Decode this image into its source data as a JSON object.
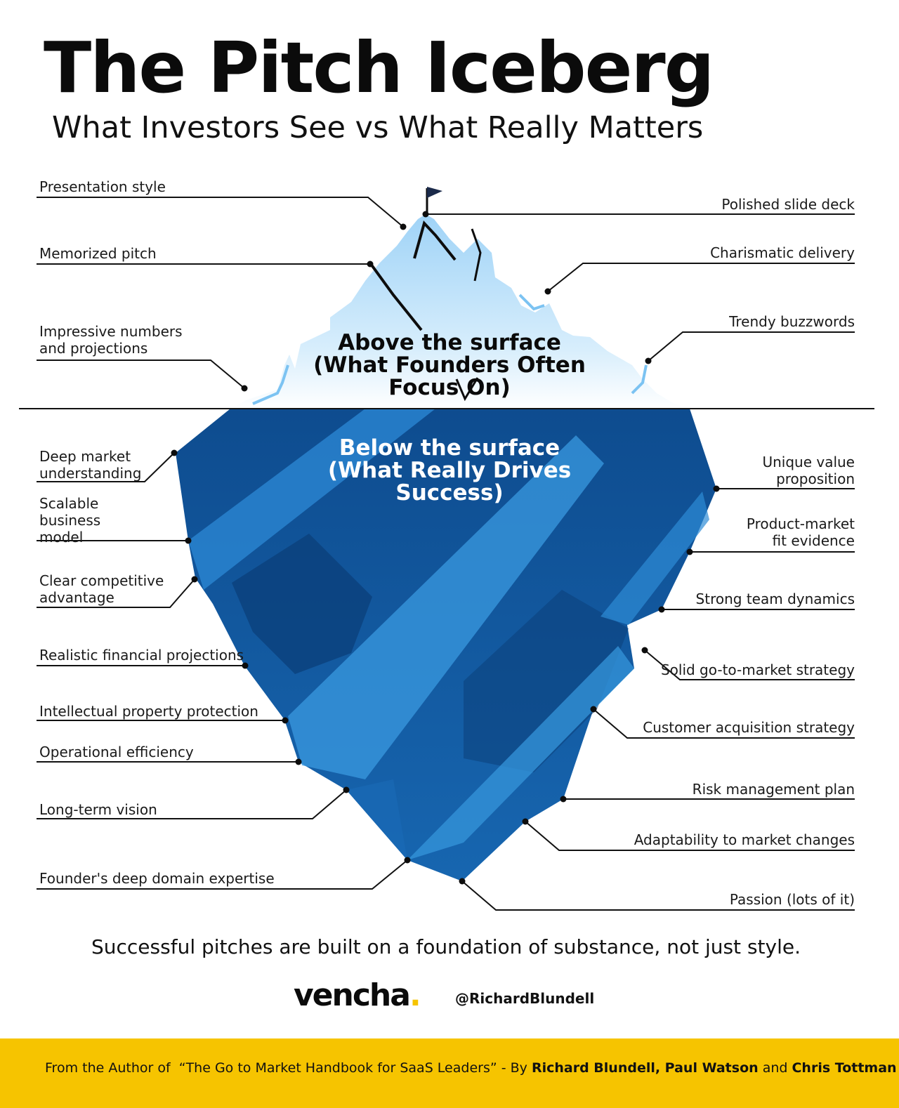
{
  "header": {
    "title": "The Pitch Iceberg",
    "subtitle": "What Investors See vs What Really Matters"
  },
  "zones": {
    "above": "Above the surface\n(What Founders Often\nFocus On)",
    "below": "Below the surface\n(What Really Drives\nSuccess)"
  },
  "labels_left_above": [
    "Presentation style",
    "Memorized pitch",
    "Impressive numbers\nand projections"
  ],
  "labels_right_above": [
    "Polished slide deck",
    "Charismatic delivery",
    "Trendy buzzwords"
  ],
  "labels_left_below": [
    "Deep market\nunderstanding",
    "Scalable\nbusiness\nmodel",
    "Clear competitive\nadvantage",
    "Realistic financial projections",
    "Intellectual property protection",
    "Operational efficiency",
    "Long-term vision",
    "Founder's deep domain expertise"
  ],
  "labels_right_below": [
    "Unique value\nproposition",
    "Product-market\nfit evidence",
    "Strong team dynamics",
    "Solid go-to-market strategy",
    "Customer acquisition strategy",
    "Risk management plan",
    "Adaptability to market changes",
    "Passion (lots of it)"
  ],
  "tagline": "Successful pitches are built on a foundation of substance, not just style.",
  "brand": {
    "logo_text": "vencha",
    "logo_dot": ".",
    "handle": "@RichardBlundell"
  },
  "footer": {
    "prefix": "From the Author of  “The Go to Market Handbook for SaaS Leaders” - By ",
    "author1": "Richard Blundell, Paul Watson",
    "and": " and ",
    "author2": "Chris Tottman"
  },
  "colors": {
    "ice_light": "#bfe3fb",
    "ice_deep": "#0f4f93",
    "ice_highlight": "#3a9ae0",
    "footer_bg": "#f6c400",
    "brand_dot": "#f6c400"
  }
}
